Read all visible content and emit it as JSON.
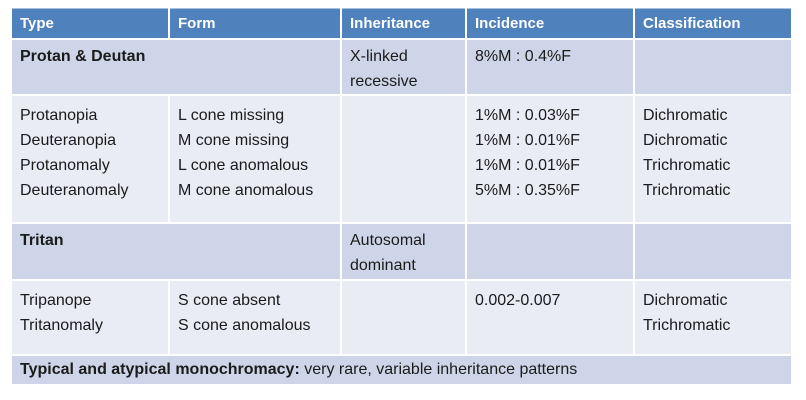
{
  "colors": {
    "header_bg": "#4f81bd",
    "band_bg": "#cfd5e8",
    "light_row_bg": "#e9ebf5",
    "separator": "#ffffff",
    "header_text": "#ffffff",
    "body_text": "#1b1b1b"
  },
  "header": [
    "Type",
    "Form",
    "Inheritance",
    "Incidence",
    "Classification"
  ],
  "protan": {
    "title": "Protan & Deutan",
    "inheritance": "X-linked recessive",
    "incidence": "8%M : 0.4%F",
    "classification": "",
    "rows": [
      {
        "type": "Protanopia",
        "form": "L cone missing",
        "incidence": "1%M : 0.03%F",
        "classification": "Dichromatic"
      },
      {
        "type": "Deuteranopia",
        "form": "M cone missing",
        "incidence": "1%M : 0.01%F",
        "classification": "Dichromatic"
      },
      {
        "type": "Protanomaly",
        "form": "L cone anomalous",
        "incidence": "1%M : 0.01%F",
        "classification": "Trichromatic"
      },
      {
        "type": "Deuteranomaly",
        "form": "M cone anomalous",
        "incidence": "5%M : 0.35%F",
        "classification": "Trichromatic"
      }
    ]
  },
  "tritan": {
    "title": "Tritan",
    "inheritance": "Autosomal dominant",
    "incidence": "",
    "classification": "",
    "rows": [
      {
        "type": "Tripanope",
        "form": "S cone absent",
        "incidence": "0.002-0.007",
        "classification": "Dichromatic"
      },
      {
        "type": "Tritanomaly",
        "form": "S cone anomalous",
        "incidence": "",
        "classification": "Trichromatic"
      }
    ]
  },
  "footer": {
    "bold": "Typical and atypical monochromacy:",
    "rest": " very rare, variable inheritance patterns"
  }
}
